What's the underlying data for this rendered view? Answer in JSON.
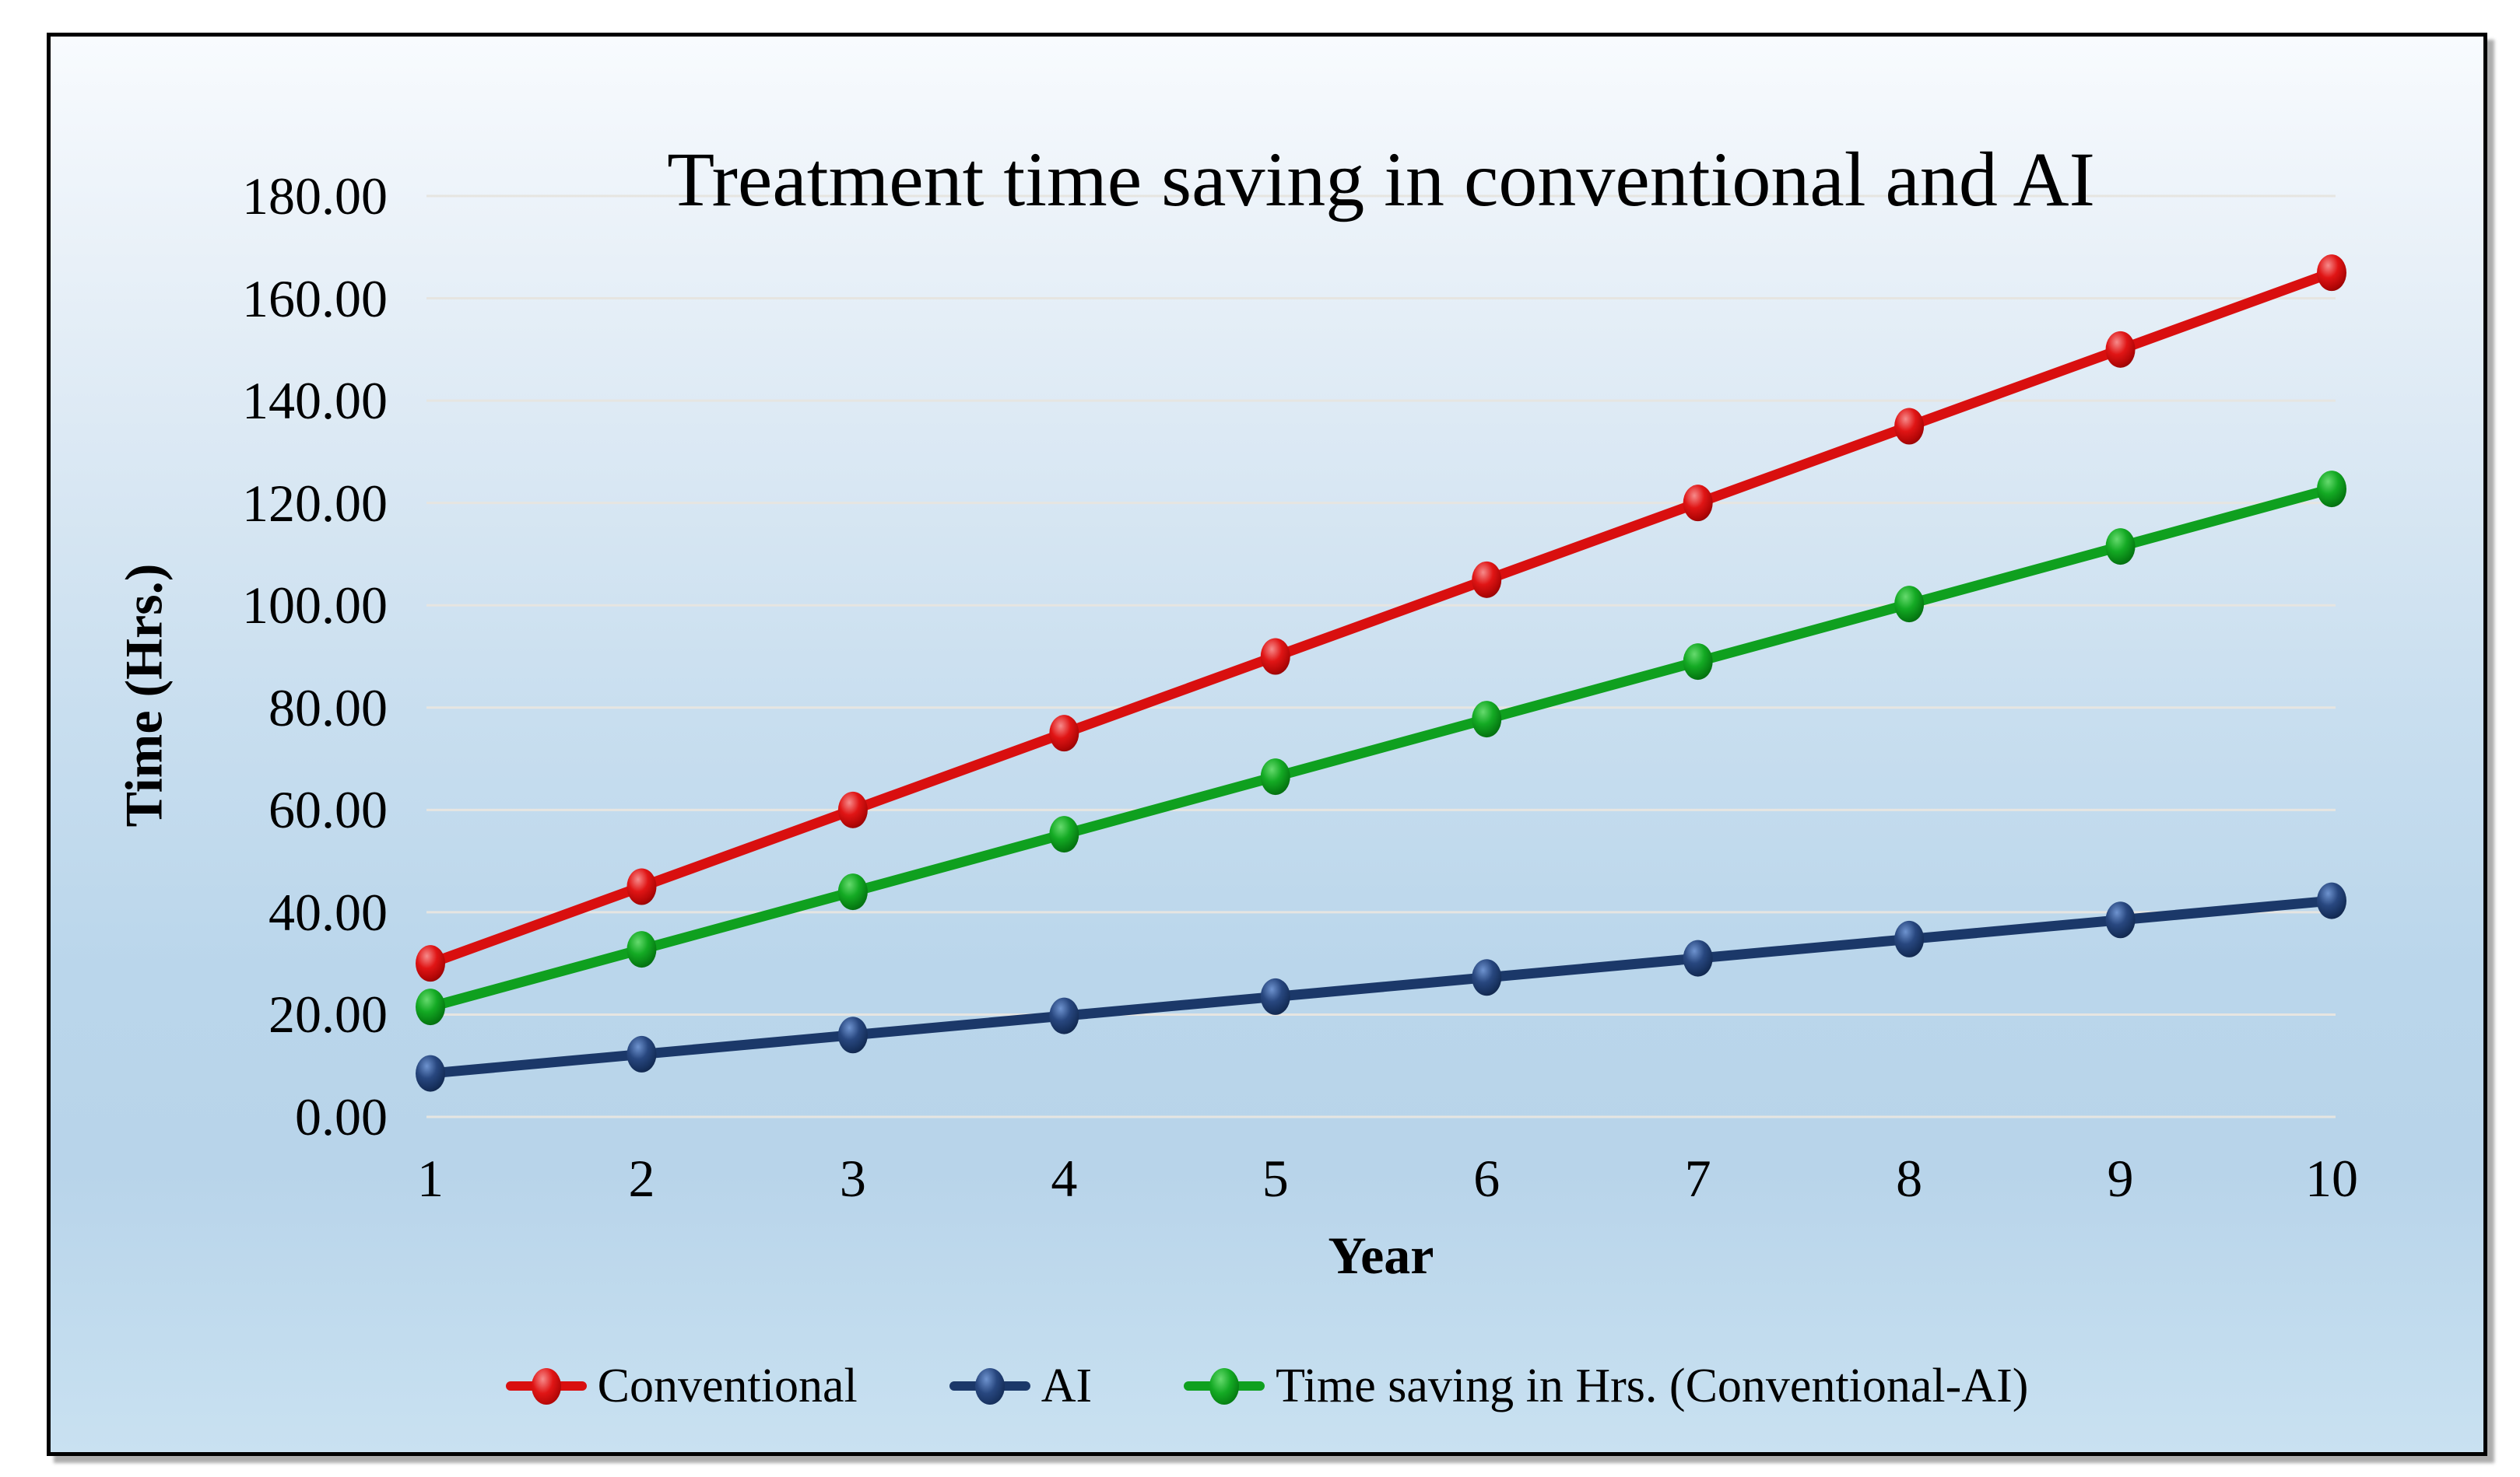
{
  "page": {
    "background": "#FFFFFF"
  },
  "figure": {
    "border_color": "#000000",
    "background_top": "#F8FBFE",
    "background_middle": "#BAD6EB",
    "background_bottom": "#C9E1F1",
    "gridline_color": "#E6E5E1"
  },
  "chart_data": {
    "type": "line",
    "title": "Treatment time saving in conventional and AI",
    "xlabel": "Year",
    "ylabel": "Time (Hrs.)",
    "x": [
      1,
      2,
      3,
      4,
      5,
      6,
      7,
      8,
      9,
      10
    ],
    "x_tick_labels": [
      "1",
      "2",
      "3",
      "4",
      "5",
      "6",
      "7",
      "8",
      "9",
      "10"
    ],
    "ylim": [
      0,
      180
    ],
    "ytick_step": 20,
    "y_tick_labels": [
      "0.00",
      "20.00",
      "40.00",
      "60.00",
      "80.00",
      "100.00",
      "120.00",
      "140.00",
      "160.00",
      "180.00"
    ],
    "grid": "horizontal",
    "legend_position": "bottom",
    "series": [
      {
        "name": "Conventional",
        "color": "#D90F0F",
        "marker_gradient": [
          "#F68B8B",
          "#E01515",
          "#B50707",
          "#7A0303"
        ],
        "values": [
          30,
          45,
          60,
          75,
          90,
          105,
          120,
          135,
          150,
          165
        ]
      },
      {
        "name": "AI",
        "color": "#1B3869",
        "marker_gradient": [
          "#6E93CF",
          "#28477F",
          "#17315E",
          "#0C1D3C"
        ],
        "values": [
          8.5,
          12.25,
          16,
          19.75,
          23.5,
          27.25,
          31,
          34.75,
          38.5,
          42.25
        ]
      },
      {
        "name": "Time saving in Hrs. (Conventional-AI)",
        "color": "#0FA01F",
        "marker_gradient": [
          "#66DA6E",
          "#14AA24",
          "#078114",
          "#035C0D"
        ],
        "values": [
          21.5,
          32.75,
          44,
          55.25,
          66.5,
          77.75,
          89,
          100.25,
          111.5,
          122.75
        ]
      }
    ]
  }
}
